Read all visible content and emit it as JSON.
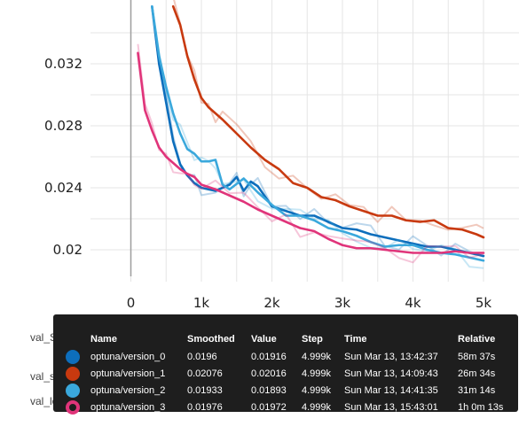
{
  "chart_data": {
    "type": "line",
    "title": "",
    "xlabel": "",
    "ylabel": "",
    "x_ticks": [
      "0",
      "1k",
      "2k",
      "3k",
      "4k",
      "5k"
    ],
    "y_ticks": [
      "0.032",
      "0.028",
      "0.024",
      "0.02"
    ],
    "xlim": [
      -300,
      5000
    ],
    "ylim": [
      0.0183,
      0.0354
    ],
    "grid": true,
    "series": [
      {
        "name": "optuna/version_0",
        "color": "#0d6ebc",
        "x": [
          300,
          400,
          500,
          600,
          700,
          800,
          900,
          1000,
          1200,
          1400,
          1500,
          1600,
          1700,
          1800,
          2000,
          2200,
          2400,
          2600,
          2800,
          3000,
          3200,
          3400,
          3600,
          3800,
          4000,
          4200,
          4400,
          4600,
          4800,
          5000
        ],
        "y": [
          0.0357,
          0.032,
          0.0295,
          0.027,
          0.0255,
          0.0248,
          0.0243,
          0.024,
          0.0238,
          0.0242,
          0.0247,
          0.0238,
          0.0244,
          0.0241,
          0.0228,
          0.0225,
          0.0222,
          0.0222,
          0.0218,
          0.0214,
          0.0213,
          0.021,
          0.0208,
          0.0206,
          0.0204,
          0.0202,
          0.0202,
          0.02,
          0.0198,
          0.0196
        ]
      },
      {
        "name": "optuna/version_1",
        "color": "#c8390f",
        "x": [
          600,
          700,
          800,
          900,
          1000,
          1100,
          1200,
          1300,
          1500,
          1700,
          1900,
          2100,
          2300,
          2500,
          2700,
          2900,
          3100,
          3300,
          3500,
          3700,
          3900,
          4100,
          4300,
          4500,
          4700,
          4900,
          5000
        ],
        "y": [
          0.0357,
          0.0345,
          0.0325,
          0.031,
          0.0298,
          0.0292,
          0.0288,
          0.0284,
          0.0275,
          0.0266,
          0.0258,
          0.0252,
          0.0243,
          0.024,
          0.0234,
          0.0232,
          0.0228,
          0.0225,
          0.0222,
          0.0222,
          0.0219,
          0.0218,
          0.0219,
          0.0214,
          0.0213,
          0.021,
          0.0208
        ]
      },
      {
        "name": "optuna/version_2",
        "color": "#3aa8dc",
        "x": [
          300,
          400,
          500,
          600,
          700,
          800,
          900,
          1000,
          1100,
          1200,
          1300,
          1400,
          1600,
          1800,
          2000,
          2200,
          2400,
          2600,
          2800,
          3000,
          3200,
          3400,
          3600,
          3800,
          4000,
          4200,
          4400,
          4600,
          4800,
          5000
        ],
        "y": [
          0.0357,
          0.0325,
          0.0305,
          0.0288,
          0.0275,
          0.0265,
          0.0262,
          0.0257,
          0.0257,
          0.0258,
          0.0242,
          0.0239,
          0.0246,
          0.0237,
          0.0229,
          0.0222,
          0.0222,
          0.0219,
          0.0214,
          0.0212,
          0.0209,
          0.0205,
          0.0202,
          0.0203,
          0.0203,
          0.02,
          0.0198,
          0.0197,
          0.0195,
          0.0193
        ]
      },
      {
        "name": "optuna/version_3",
        "color": "#e0347a",
        "x": [
          100,
          200,
          300,
          400,
          500,
          600,
          700,
          800,
          900,
          1000,
          1200,
          1400,
          1600,
          1800,
          2000,
          2200,
          2400,
          2600,
          2800,
          3000,
          3200,
          3400,
          3600,
          3800,
          4000,
          4200,
          4400,
          4600,
          4800,
          5000
        ],
        "y": [
          0.0327,
          0.029,
          0.0277,
          0.0266,
          0.026,
          0.0256,
          0.0252,
          0.0249,
          0.0247,
          0.0242,
          0.0239,
          0.0235,
          0.0231,
          0.0226,
          0.0222,
          0.0218,
          0.0214,
          0.0212,
          0.0207,
          0.0203,
          0.0201,
          0.0201,
          0.02,
          0.0199,
          0.0198,
          0.0198,
          0.0198,
          0.0199,
          0.0198,
          0.0198
        ]
      }
    ]
  },
  "background_labels": [
    "val_SM",
    "val_ss",
    "val_loss"
  ],
  "tooltip": {
    "headers": {
      "name": "Name",
      "smoothed": "Smoothed",
      "value": "Value",
      "step": "Step",
      "time": "Time",
      "relative": "Relative"
    },
    "rows": [
      {
        "name": "optuna/version_0",
        "smoothed": "0.0196",
        "value": "0.01916",
        "step": "4.999k",
        "time": "Sun Mar 13, 13:42:37",
        "relative": "58m 37s",
        "color": "#0d6ebc",
        "selected": false
      },
      {
        "name": "optuna/version_1",
        "smoothed": "0.02076",
        "value": "0.02016",
        "step": "4.999k",
        "time": "Sun Mar 13, 14:09:43",
        "relative": "26m 34s",
        "color": "#c8390f",
        "selected": false
      },
      {
        "name": "optuna/version_2",
        "smoothed": "0.01933",
        "value": "0.01893",
        "step": "4.999k",
        "time": "Sun Mar 13, 14:41:35",
        "relative": "31m 14s",
        "color": "#3aa8dc",
        "selected": false
      },
      {
        "name": "optuna/version_3",
        "smoothed": "0.01976",
        "value": "0.01972",
        "step": "4.999k",
        "time": "Sun Mar 13, 15:43:01",
        "relative": "1h 0m 13s",
        "color": "#e0347a",
        "selected": true
      }
    ]
  }
}
